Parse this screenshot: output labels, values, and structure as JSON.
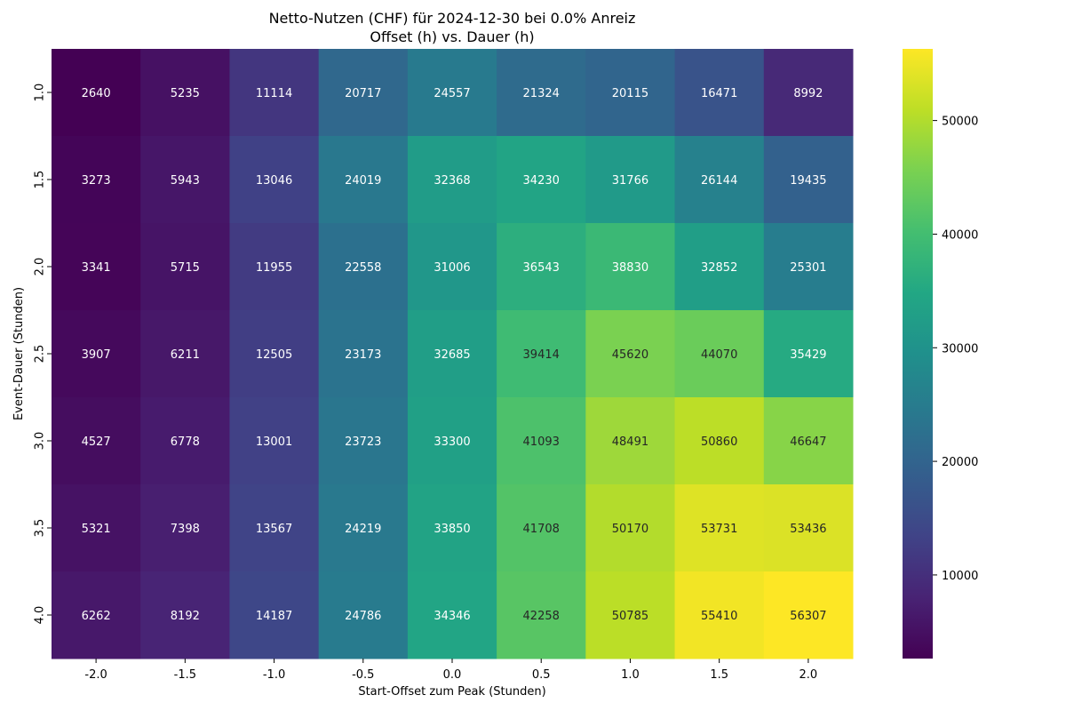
{
  "chart_data": {
    "type": "heatmap",
    "title_line1": "Netto-Nutzen (CHF) für 2024-12-30 bei 0.0% Anreiz",
    "title_line2": "Offset (h) vs. Dauer (h)",
    "xlabel": "Start-Offset zum Peak (Stunden)",
    "ylabel": "Event-Dauer (Stunden)",
    "x_categories": [
      "-2.0",
      "-1.5",
      "-1.0",
      "-0.5",
      "0.0",
      "0.5",
      "1.0",
      "1.5",
      "2.0"
    ],
    "y_categories": [
      "1.0",
      "1.5",
      "2.0",
      "2.5",
      "3.0",
      "3.5",
      "4.0"
    ],
    "values": [
      [
        2640,
        5235,
        11114,
        20717,
        24557,
        21324,
        20115,
        16471,
        8992
      ],
      [
        3273,
        5943,
        13046,
        24019,
        32368,
        34230,
        31766,
        26144,
        19435
      ],
      [
        3341,
        5715,
        11955,
        22558,
        31006,
        36543,
        38830,
        32852,
        25301
      ],
      [
        3907,
        6211,
        12505,
        23173,
        32685,
        39414,
        45620,
        44070,
        35429
      ],
      [
        4527,
        6778,
        13001,
        23723,
        33300,
        41093,
        48491,
        50860,
        46647
      ],
      [
        5321,
        7398,
        13567,
        24219,
        33850,
        41708,
        50170,
        53731,
        53436
      ],
      [
        6262,
        8192,
        14187,
        24786,
        34346,
        42258,
        50785,
        55410,
        56307
      ]
    ],
    "colormap": "viridis",
    "vmin": 2640,
    "vmax": 56307,
    "colorbar_ticks": [
      10000,
      20000,
      30000,
      40000,
      50000
    ],
    "colorbar_tick_labels": [
      "10000",
      "20000",
      "30000",
      "40000",
      "50000"
    ]
  }
}
